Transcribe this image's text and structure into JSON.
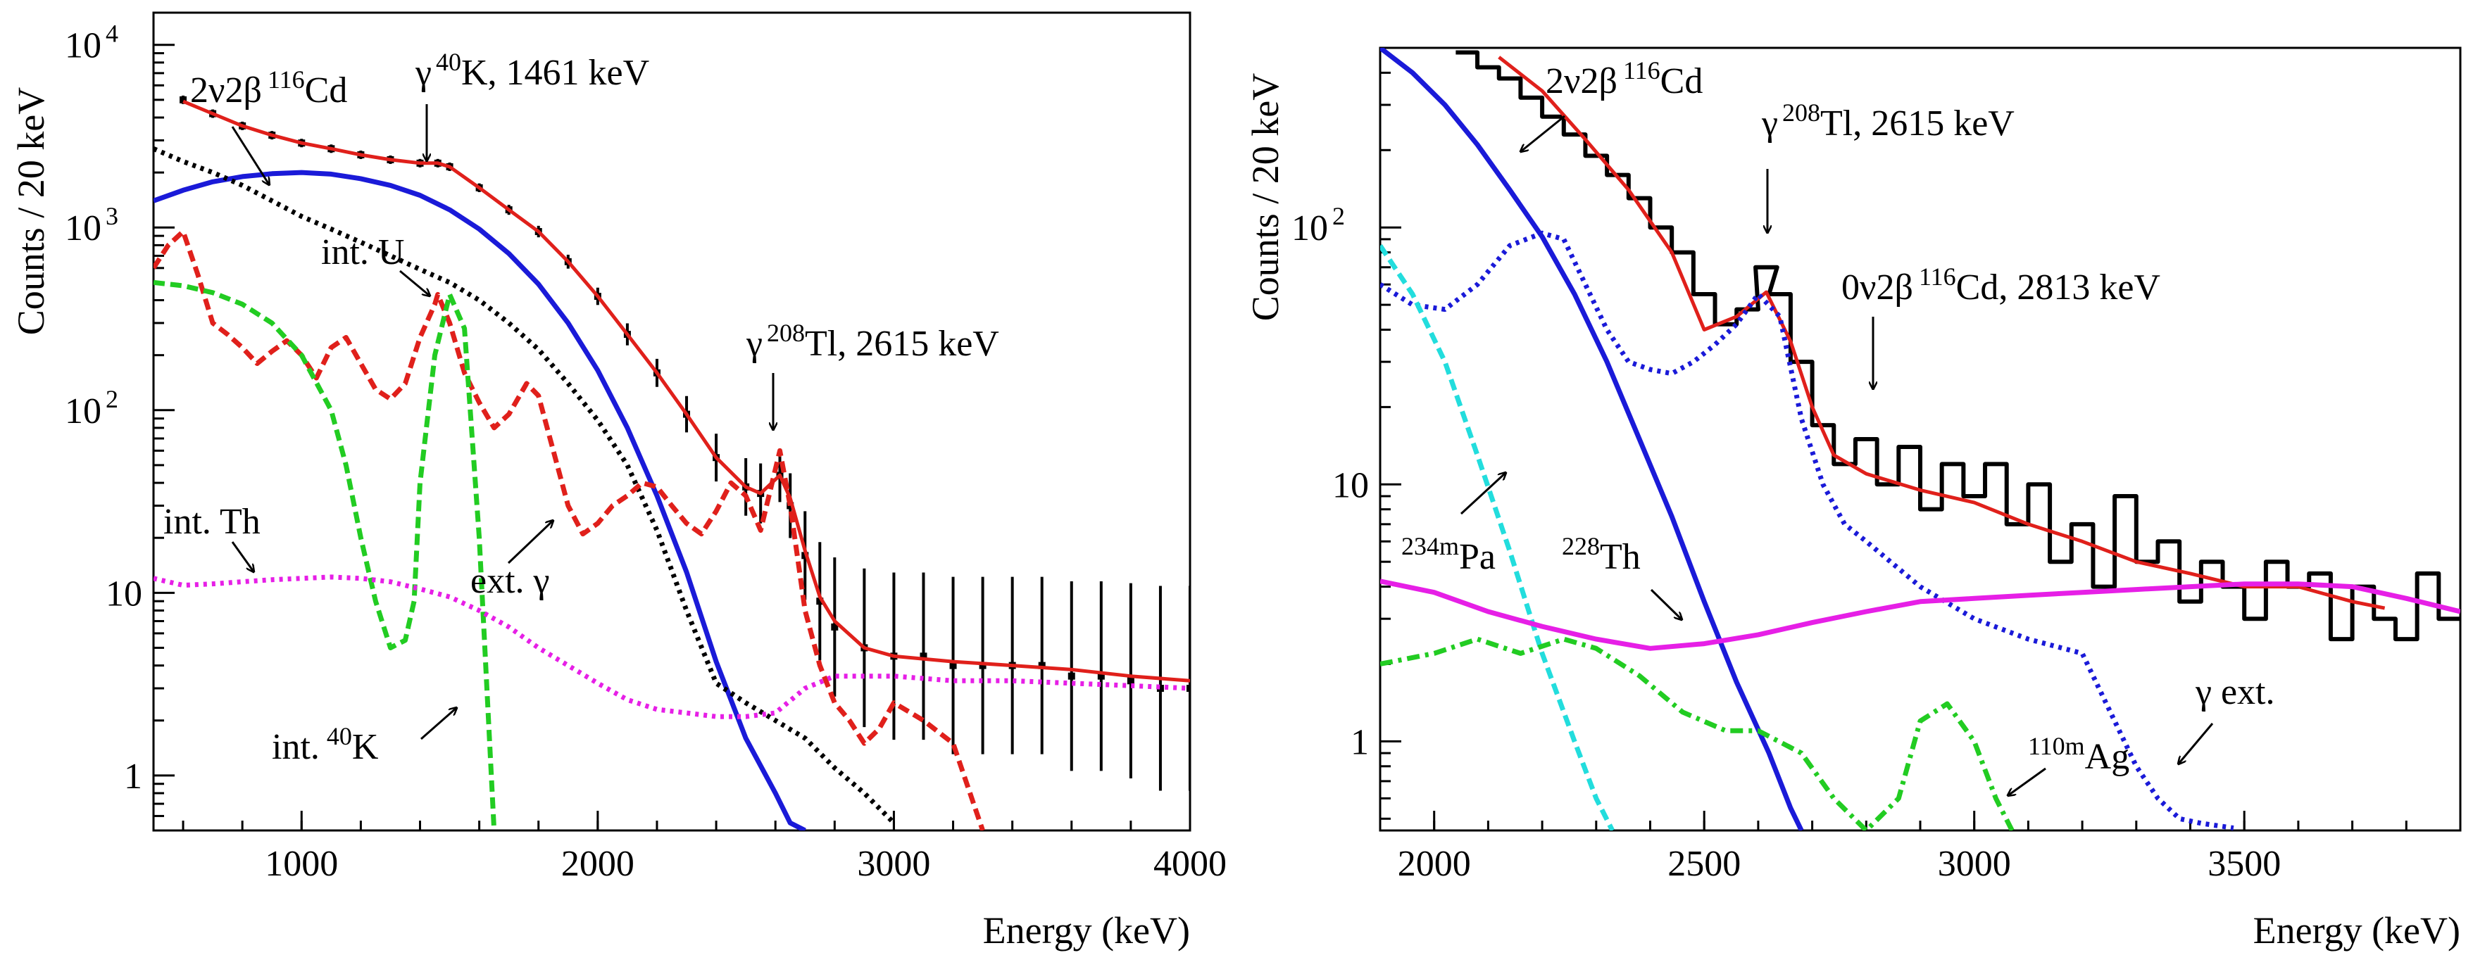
{
  "chart_data": [
    {
      "type": "line",
      "panel": "left",
      "xlabel": "Energy (keV)",
      "ylabel": "Counts / 20 keV",
      "xlim": [
        500,
        4000
      ],
      "ylim_log": [
        0.5,
        15000
      ],
      "y_scale": "log",
      "x_ticks": [
        1000,
        2000,
        3000,
        4000
      ],
      "x_tick_labels": [
        "1000",
        "2000",
        "3000",
        "4000"
      ],
      "y_ticks": [
        1,
        10,
        100,
        1000,
        10000
      ],
      "y_tick_labels": [
        {
          "base": "1",
          "exp": ""
        },
        {
          "base": "10",
          "exp": ""
        },
        {
          "base": "10",
          "exp": "2"
        },
        {
          "base": "10",
          "exp": "3"
        },
        {
          "base": "10",
          "exp": "4"
        }
      ],
      "series": [
        {
          "name": "data",
          "style": "points",
          "color": "#000000",
          "x": [
            600,
            700,
            800,
            900,
            1000,
            1100,
            1200,
            1300,
            1400,
            1460,
            1500,
            1600,
            1700,
            1800,
            1900,
            2000,
            2100,
            2200,
            2300,
            2400,
            2500,
            2550,
            2615,
            2650,
            2700,
            2750,
            2800,
            2900,
            3000,
            3100,
            3200,
            3300,
            3400,
            3500,
            3600,
            3700,
            3800,
            3900,
            4000
          ],
          "y": [
            5000,
            4200,
            3600,
            3200,
            2900,
            2700,
            2500,
            2350,
            2250,
            2250,
            2150,
            1650,
            1250,
            950,
            650,
            420,
            260,
            160,
            95,
            55,
            38,
            35,
            44,
            30,
            16,
            9,
            6.5,
            5,
            4.5,
            4.5,
            4,
            4,
            4,
            4,
            3.5,
            3.5,
            3.3,
            3,
            3
          ]
        },
        {
          "name": "fit",
          "style": "solid",
          "color": "#e0201b",
          "x": [
            600,
            700,
            800,
            900,
            1000,
            1100,
            1200,
            1300,
            1400,
            1460,
            1500,
            1600,
            1700,
            1800,
            1900,
            2000,
            2100,
            2200,
            2300,
            2400,
            2500,
            2550,
            2615,
            2650,
            2700,
            2750,
            2800,
            2900,
            3000,
            3200,
            3400,
            3600,
            3800,
            4000
          ],
          "y": [
            4900,
            4200,
            3600,
            3200,
            2900,
            2700,
            2500,
            2350,
            2250,
            2250,
            2150,
            1650,
            1250,
            950,
            650,
            420,
            260,
            160,
            95,
            55,
            38,
            35,
            44,
            33,
            17,
            9.5,
            7,
            5,
            4.5,
            4.2,
            4,
            3.8,
            3.5,
            3.3
          ]
        },
        {
          "name": "2ν2β 116Cd",
          "style": "solid",
          "color": "#1a1ad8",
          "x": [
            500,
            600,
            700,
            800,
            900,
            1000,
            1100,
            1200,
            1300,
            1400,
            1500,
            1600,
            1700,
            1800,
            1900,
            2000,
            2100,
            2200,
            2300,
            2400,
            2500,
            2600,
            2650,
            2700
          ],
          "y": [
            1400,
            1600,
            1780,
            1900,
            1970,
            2000,
            1960,
            1850,
            1700,
            1500,
            1250,
            980,
            720,
            490,
            300,
            165,
            80,
            34,
            13,
            4.2,
            1.6,
            0.8,
            0.55,
            0.4
          ]
        },
        {
          "name": "int. U",
          "style": "dotted",
          "color": "#000000",
          "x": [
            500,
            600,
            700,
            800,
            900,
            1000,
            1100,
            1200,
            1300,
            1400,
            1500,
            1600,
            1700,
            1800,
            1900,
            2000,
            2100,
            2200,
            2300,
            2400,
            2500,
            2600,
            2700,
            2800,
            2900,
            3000
          ],
          "y": [
            2700,
            2300,
            2000,
            1700,
            1400,
            1150,
            980,
            830,
            700,
            590,
            500,
            400,
            300,
            215,
            140,
            88,
            50,
            22,
            8,
            3.2,
            2.5,
            2.0,
            1.6,
            1.1,
            0.8,
            0.55
          ]
        },
        {
          "name": "ext. γ",
          "style": "dashed",
          "color": "#e0201b",
          "x": [
            500,
            550,
            600,
            650,
            700,
            750,
            800,
            850,
            900,
            950,
            1000,
            1050,
            1100,
            1150,
            1200,
            1250,
            1300,
            1350,
            1400,
            1450,
            1460,
            1500,
            1550,
            1600,
            1650,
            1700,
            1760,
            1800,
            1850,
            1900,
            1950,
            2000,
            2050,
            2100,
            2150,
            2200,
            2250,
            2300,
            2350,
            2400,
            2450,
            2500,
            2550,
            2615,
            2650,
            2700,
            2750,
            2800,
            2850,
            2900,
            2950,
            3000,
            3100,
            3200,
            3300
          ],
          "y": [
            600,
            800,
            950,
            550,
            300,
            260,
            220,
            180,
            210,
            240,
            200,
            150,
            220,
            250,
            180,
            130,
            115,
            140,
            250,
            380,
            430,
            300,
            160,
            110,
            80,
            95,
            140,
            120,
            60,
            30,
            21,
            24,
            30,
            34,
            40,
            38,
            30,
            24,
            21,
            28,
            40,
            34,
            22,
            60,
            30,
            8,
            4,
            2.5,
            2,
            1.5,
            1.8,
            2.5,
            2,
            1.5,
            0.5
          ]
        },
        {
          "name": "int. 40K",
          "style": "dashed",
          "color": "#22cc22",
          "x": [
            500,
            600,
            700,
            800,
            900,
            1000,
            1100,
            1150,
            1200,
            1250,
            1300,
            1350,
            1380,
            1400,
            1450,
            1500,
            1550,
            1600,
            1650
          ],
          "y": [
            500,
            480,
            440,
            380,
            300,
            200,
            100,
            50,
            20,
            9,
            5,
            5.5,
            9,
            40,
            200,
            430,
            280,
            20,
            0.3
          ]
        },
        {
          "name": "int. Th",
          "style": "dotted",
          "color": "#e61fe6",
          "x": [
            500,
            600,
            700,
            800,
            900,
            1000,
            1100,
            1200,
            1300,
            1400,
            1500,
            1600,
            1700,
            1800,
            1900,
            2000,
            2100,
            2200,
            2300,
            2400,
            2500,
            2600,
            2700,
            2800,
            2900,
            3000,
            3200,
            3400,
            3600,
            3800,
            4000
          ],
          "y": [
            12,
            11,
            11.2,
            11.5,
            11.8,
            12,
            12.2,
            12,
            11.5,
            10.5,
            9.5,
            8,
            6.5,
            5,
            4,
            3.2,
            2.6,
            2.3,
            2.2,
            2.1,
            2.1,
            2.2,
            3.0,
            3.5,
            3.5,
            3.5,
            3.3,
            3.3,
            3.2,
            3.1,
            3.0
          ]
        }
      ],
      "annotations": [
        {
          "text": "2ν2β",
          "sup": "116",
          "suffix": "Cd",
          "arrow": true
        },
        {
          "text": "γ",
          "sup": "40",
          "suffix": "K, 1461 keV",
          "arrow": true
        },
        {
          "text": "int. U",
          "sup": "",
          "suffix": "",
          "arrow": true
        },
        {
          "text": "γ",
          "sup": "208",
          "suffix": "Tl, 2615 keV",
          "arrow": true
        },
        {
          "text": "int. Th",
          "sup": "",
          "suffix": "",
          "arrow": true
        },
        {
          "text": "ext. γ",
          "sup": "",
          "suffix": "",
          "arrow": true
        },
        {
          "text": "int.",
          "sup": "40",
          "suffix": "K",
          "arrow": true
        }
      ]
    },
    {
      "type": "line",
      "panel": "right",
      "xlabel": "Energy (keV)",
      "ylabel": "Counts / 20 keV",
      "xlim": [
        1900,
        3900
      ],
      "ylim_log": [
        0.45,
        500
      ],
      "y_scale": "log",
      "x_ticks": [
        2000,
        2500,
        3000,
        3500
      ],
      "x_tick_labels": [
        "2000",
        "2500",
        "3000",
        "3500"
      ],
      "y_ticks": [
        1,
        10,
        100
      ],
      "y_tick_labels": [
        {
          "base": "1",
          "exp": ""
        },
        {
          "base": "10",
          "exp": ""
        },
        {
          "base": "10",
          "exp": "2"
        }
      ],
      "series": [
        {
          "name": "data",
          "style": "histogram",
          "color": "#000000",
          "x": [
            2060,
            2100,
            2140,
            2180,
            2220,
            2260,
            2300,
            2340,
            2380,
            2420,
            2460,
            2500,
            2540,
            2580,
            2615,
            2640,
            2680,
            2720,
            2760,
            2800,
            2840,
            2880,
            2920,
            2960,
            3000,
            3040,
            3080,
            3120,
            3160,
            3200,
            3240,
            3280,
            3320,
            3360,
            3400,
            3440,
            3480,
            3520,
            3560,
            3600,
            3640,
            3680,
            3720,
            3760,
            3800,
            3840,
            3880
          ],
          "y": [
            480,
            420,
            380,
            320,
            270,
            230,
            190,
            160,
            130,
            100,
            80,
            55,
            42,
            48,
            70,
            55,
            30,
            17,
            12,
            15,
            10,
            14,
            8,
            12,
            9,
            12,
            7,
            10,
            5,
            7,
            4,
            9,
            5,
            6,
            3.5,
            5,
            4,
            3,
            5,
            4,
            4.5,
            2.5,
            4,
            3,
            2.5,
            4.5,
            3
          ]
        },
        {
          "name": "fit",
          "style": "solid",
          "color": "#e0201b",
          "x": [
            2120,
            2200,
            2280,
            2360,
            2440,
            2500,
            2560,
            2615,
            2660,
            2700,
            2740,
            2800,
            2900,
            3000,
            3100,
            3200,
            3300,
            3400,
            3500,
            3600,
            3700,
            3760
          ],
          "y": [
            460,
            340,
            220,
            140,
            80,
            40,
            45,
            56,
            36,
            20,
            13,
            11,
            9.5,
            8.5,
            7,
            6,
            5,
            4.5,
            4,
            4,
            3.5,
            3.3
          ]
        },
        {
          "name": "2ν2β 116Cd",
          "style": "solid",
          "color": "#1a1ad8",
          "x": [
            1900,
            1960,
            2020,
            2080,
            2140,
            2200,
            2260,
            2320,
            2380,
            2440,
            2500,
            2560,
            2620,
            2660,
            2680
          ],
          "y": [
            500,
            400,
            300,
            210,
            140,
            92,
            55,
            30,
            15,
            7.5,
            3.5,
            1.7,
            0.9,
            0.55,
            0.45
          ]
        },
        {
          "name": "γ ext.",
          "style": "dotted",
          "color": "#1a1ad8",
          "x": [
            1900,
            1960,
            2020,
            2080,
            2140,
            2200,
            2240,
            2280,
            2320,
            2360,
            2400,
            2440,
            2480,
            2520,
            2560,
            2600,
            2640,
            2680,
            2720,
            2760,
            2800,
            2900,
            3000,
            3100,
            3200,
            3260,
            3300,
            3340,
            3380,
            3420,
            3480
          ],
          "y": [
            60,
            50,
            48,
            60,
            85,
            95,
            90,
            60,
            40,
            30,
            28,
            27,
            30,
            35,
            42,
            55,
            45,
            18,
            10,
            7,
            6,
            4,
            3,
            2.5,
            2.2,
            1.2,
            0.8,
            0.6,
            0.5,
            0.48,
            0.46
          ]
        },
        {
          "name": "234mPa",
          "style": "dashed",
          "color": "#22dddd",
          "x": [
            1900,
            1960,
            2020,
            2080,
            2140,
            2200,
            2260,
            2300,
            2330
          ],
          "y": [
            85,
            55,
            30,
            13,
            5.5,
            2.2,
            1.0,
            0.6,
            0.45
          ]
        },
        {
          "name": "228Th",
          "style": "solid",
          "color": "#e61fe6",
          "x": [
            1900,
            2000,
            2100,
            2200,
            2300,
            2400,
            2500,
            2600,
            2700,
            2800,
            2900,
            3000,
            3100,
            3200,
            3300,
            3400,
            3500,
            3600,
            3700,
            3800,
            3900
          ],
          "y": [
            4.2,
            3.8,
            3.2,
            2.8,
            2.5,
            2.3,
            2.4,
            2.6,
            2.9,
            3.2,
            3.5,
            3.6,
            3.7,
            3.8,
            3.9,
            4.0,
            4.1,
            4.1,
            4.0,
            3.6,
            3.2
          ]
        },
        {
          "name": "110mAg",
          "style": "dashdot",
          "color": "#22cc22",
          "x": [
            1900,
            2000,
            2080,
            2160,
            2240,
            2300,
            2380,
            2460,
            2540,
            2600,
            2680,
            2740,
            2800,
            2860,
            2900,
            2950,
            3000,
            3040,
            3070
          ],
          "y": [
            2.0,
            2.2,
            2.5,
            2.2,
            2.5,
            2.3,
            1.8,
            1.3,
            1.1,
            1.1,
            0.9,
            0.6,
            0.42,
            0.6,
            1.2,
            1.4,
            1.0,
            0.6,
            0.4
          ]
        }
      ],
      "annotations": [
        {
          "text": "2ν2β",
          "sup": "116",
          "suffix": "Cd",
          "arrow": true
        },
        {
          "text": "γ",
          "sup": "208",
          "suffix": "Tl, 2615 keV",
          "arrow": true
        },
        {
          "text": "0ν2β",
          "sup": "116",
          "suffix": "Cd, 2813 keV",
          "arrow": true
        },
        {
          "text": "",
          "sup": "234m",
          "suffix": "Pa",
          "arrow": true
        },
        {
          "text": "",
          "sup": "228",
          "suffix": "Th",
          "arrow": true
        },
        {
          "text": "",
          "sup": "110m",
          "suffix": "Ag",
          "arrow": true
        },
        {
          "text": "γ ext.",
          "sup": "",
          "suffix": "",
          "arrow": true
        }
      ]
    }
  ]
}
